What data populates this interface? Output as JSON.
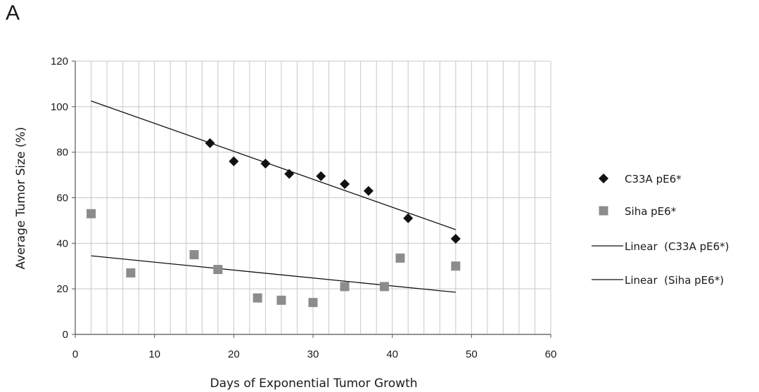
{
  "panel_label": "A",
  "chart_data": {
    "type": "scatter",
    "title": "",
    "xlabel": "Days of Exponential Tumor Growth",
    "ylabel": "Average Tumor Size (%)",
    "xlim": [
      0,
      60
    ],
    "ylim": [
      0,
      120
    ],
    "x_ticks": [
      0,
      10,
      20,
      30,
      40,
      50,
      60
    ],
    "y_ticks": [
      0,
      20,
      40,
      60,
      80,
      100,
      120
    ],
    "x_minor_step": 2,
    "grid": true,
    "legend_position": "right",
    "series": [
      {
        "name": "C33A pE6*",
        "marker": "diamond",
        "color": "#111111",
        "points": [
          [
            17,
            84
          ],
          [
            20,
            76
          ],
          [
            24,
            75
          ],
          [
            27,
            70.5
          ],
          [
            31,
            69.5
          ],
          [
            34,
            66
          ],
          [
            37,
            63
          ],
          [
            42,
            51
          ],
          [
            48,
            42
          ]
        ]
      },
      {
        "name": "Siha pE6*",
        "marker": "square",
        "color": "#8c8c8c",
        "points": [
          [
            2,
            53
          ],
          [
            7,
            27
          ],
          [
            15,
            35
          ],
          [
            18,
            28.5
          ],
          [
            23,
            16
          ],
          [
            26,
            15
          ],
          [
            30,
            14
          ],
          [
            34,
            21
          ],
          [
            39,
            21
          ],
          [
            41,
            33.5
          ],
          [
            48,
            30
          ]
        ]
      }
    ],
    "trendlines": [
      {
        "name": "Linear  (C33A pE6*)",
        "color": "#111111",
        "from": [
          2,
          102.5
        ],
        "to": [
          48,
          46
        ]
      },
      {
        "name": "Linear  (Siha pE6*)",
        "color": "#111111",
        "from": [
          2,
          34.5
        ],
        "to": [
          48,
          18.5
        ]
      }
    ]
  }
}
